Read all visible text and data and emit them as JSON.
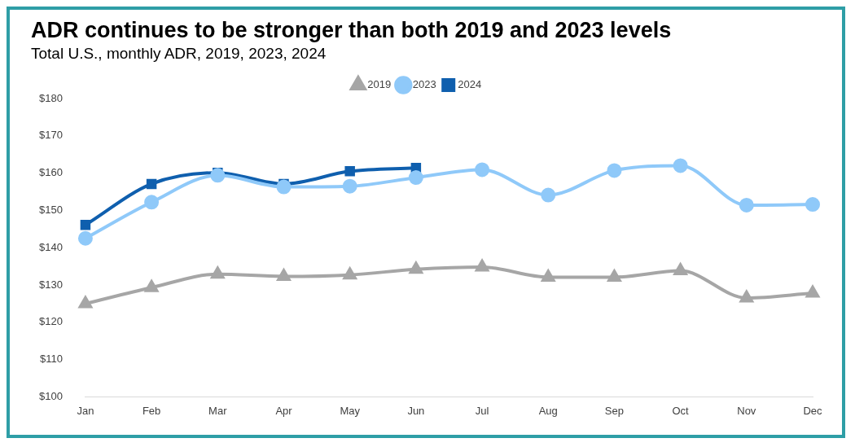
{
  "chart_data": {
    "type": "line",
    "title": "ADR continues to be stronger than both 2019 and 2023 levels",
    "subtitle": "Total U.S., monthly ADR, 2019, 2023, 2024",
    "categories": [
      "Jan",
      "Feb",
      "Mar",
      "Apr",
      "May",
      "Jun",
      "Jul",
      "Aug",
      "Sep",
      "Oct",
      "Nov",
      "Dec"
    ],
    "series": [
      {
        "name": "2019",
        "color": "#a6a6a6",
        "marker": "triangle",
        "values": [
          125.0,
          129.3,
          132.9,
          132.3,
          132.7,
          134.2,
          134.8,
          132.1,
          132.1,
          133.8,
          126.5,
          127.8
        ]
      },
      {
        "name": "2023",
        "color": "#8fc9f9",
        "marker": "circle",
        "values": [
          142.5,
          152.2,
          159.4,
          156.3,
          156.5,
          158.8,
          160.9,
          154.1,
          160.7,
          162.0,
          151.4,
          151.6
        ]
      },
      {
        "name": "2024",
        "color": "#0f5fae",
        "marker": "square",
        "values": [
          146.1,
          157.1,
          160.1,
          157.1,
          160.5,
          161.4,
          null,
          null,
          null,
          null,
          null,
          null
        ]
      }
    ],
    "ylim": [
      100,
      180
    ],
    "yticks": [
      {
        "value": 100,
        "label": "$100"
      },
      {
        "value": 110,
        "label": "$110"
      },
      {
        "value": 120,
        "label": "$120"
      },
      {
        "value": 130,
        "label": "$130"
      },
      {
        "value": 140,
        "label": "$140"
      },
      {
        "value": 150,
        "label": "$150"
      },
      {
        "value": 160,
        "label": "$160"
      },
      {
        "value": 170,
        "label": "$170"
      },
      {
        "value": 180,
        "label": "$180"
      }
    ],
    "grid": false,
    "legend": "top"
  }
}
